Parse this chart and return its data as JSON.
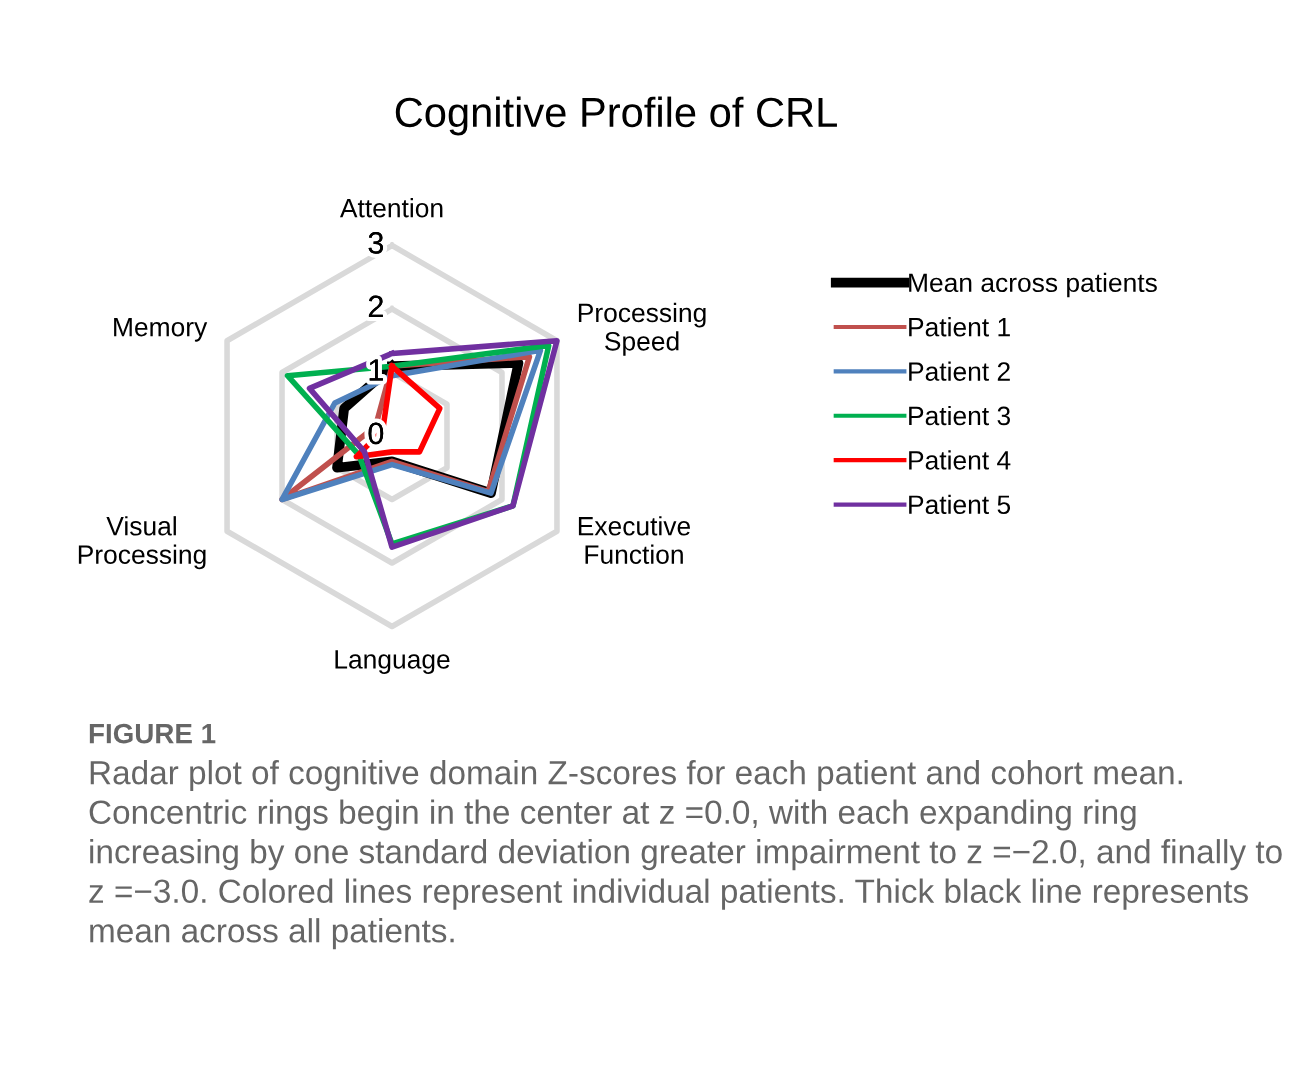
{
  "chart_data": {
    "type": "radar",
    "title": "Cognitive Profile of CRL",
    "categories": [
      "Attention",
      "Processing\nSpeed",
      "Executive\nFunction",
      "Language",
      "Visual\nProcessing",
      "Memory"
    ],
    "ylim": [
      0,
      3
    ],
    "yticks": [
      0,
      1,
      2,
      3
    ],
    "grid": true,
    "legend": "right",
    "series": [
      {
        "name": "Mean across patients",
        "color": "#000000",
        "values": [
          1.1,
          2.3,
          1.8,
          0.4,
          1.0,
          0.87
        ]
      },
      {
        "name": "Patient 1",
        "color": "#c0504d",
        "values": [
          1.1,
          2.5,
          1.75,
          0.4,
          2.0,
          0.3
        ]
      },
      {
        "name": "Patient 2",
        "color": "#4f81bd",
        "values": [
          0.95,
          2.7,
          1.8,
          0.45,
          2.0,
          1.04
        ]
      },
      {
        "name": "Patient 3",
        "color": "#00b050",
        "values": [
          1.1,
          2.85,
          2.2,
          1.7,
          0.6,
          1.9
        ]
      },
      {
        "name": "Patient 4",
        "color": "#ff0000",
        "values": [
          1.1,
          0.87,
          0.5,
          0.25,
          0.65,
          0.17
        ]
      },
      {
        "name": "Patient 5",
        "color": "#7030a0",
        "values": [
          1.3,
          3.0,
          2.2,
          1.75,
          0.5,
          1.5
        ]
      }
    ],
    "annotations": [
      "FIGURE 1",
      "Radar plot of cognitive domain Z-scores for each patient and cohort mean. Concentric rings begin in the center at z =0.0, with each expanding ring increasing by one standard deviation greater impairment to z =−2.0, and finally to z =−3.0. Colored lines represent individual patients. Thick black line represents mean across all patients."
    ]
  }
}
